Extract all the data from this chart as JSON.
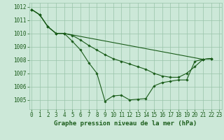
{
  "title": "Graphe pression niveau de la mer (hPa)",
  "background_color": "#cce8d8",
  "grid_color": "#99c4aa",
  "line_color": "#1a5c1a",
  "marker_color": "#1a5c1a",
  "xlim": [
    -0.3,
    23.3
  ],
  "ylim": [
    1004.3,
    1012.3
  ],
  "yticks": [
    1005,
    1006,
    1007,
    1008,
    1009,
    1010,
    1011,
    1012
  ],
  "xticks": [
    0,
    1,
    2,
    3,
    4,
    5,
    6,
    7,
    8,
    9,
    10,
    11,
    12,
    13,
    14,
    15,
    16,
    17,
    18,
    19,
    20,
    21,
    22,
    23
  ],
  "series1_x": [
    0,
    1,
    2,
    3,
    4,
    5,
    6,
    7,
    8,
    9,
    10,
    11,
    12,
    13,
    14,
    15,
    16,
    17,
    18,
    19,
    20,
    21,
    22
  ],
  "series1_y": [
    1011.8,
    1011.4,
    1010.5,
    1010.0,
    1010.0,
    1009.85,
    1009.5,
    1009.1,
    1008.75,
    1008.4,
    1008.1,
    1007.9,
    1007.7,
    1007.5,
    1007.3,
    1007.0,
    1006.8,
    1006.7,
    1006.7,
    1007.0,
    1007.5,
    1008.05,
    1008.1
  ],
  "series2_x": [
    0,
    1,
    2,
    3,
    4,
    21,
    22
  ],
  "series2_y": [
    1011.8,
    1011.4,
    1010.5,
    1010.0,
    1010.0,
    1008.05,
    1008.1
  ],
  "series3_x": [
    0,
    1,
    2,
    3,
    4,
    5,
    6,
    7,
    8,
    9,
    10,
    11,
    12,
    13,
    14,
    15,
    16,
    17,
    18,
    19,
    20,
    21,
    22
  ],
  "series3_y": [
    1011.8,
    1011.4,
    1010.5,
    1010.0,
    1010.0,
    1009.4,
    1008.75,
    1007.8,
    1007.0,
    1004.9,
    1005.3,
    1005.35,
    1005.0,
    1005.05,
    1005.1,
    1006.05,
    1006.3,
    1006.4,
    1006.5,
    1006.5,
    1007.9,
    1008.05,
    1008.1
  ],
  "fontsize_label": 6.5,
  "fontsize_tick": 5.5
}
